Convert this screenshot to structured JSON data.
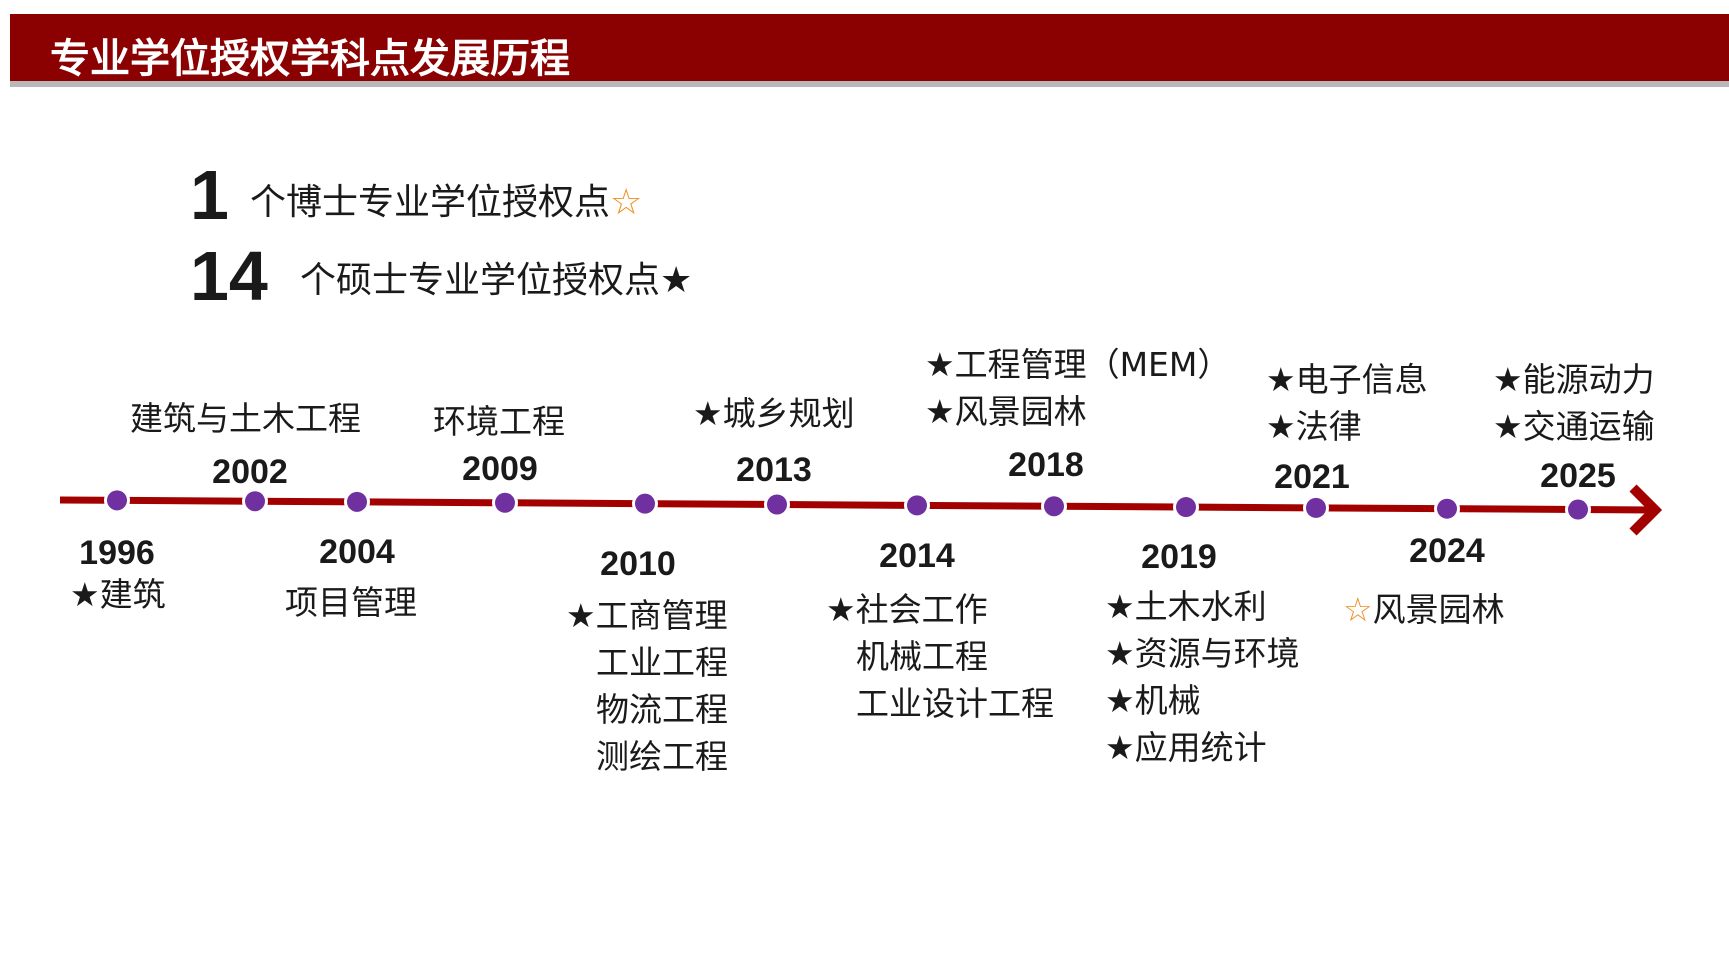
{
  "header": {
    "title": "专业学位授权学科点发展历程"
  },
  "summary": [
    {
      "number": "1",
      "text": "个博士专业学位授权点",
      "star": "☆"
    },
    {
      "number": "14",
      "text": "个硕士专业学位授权点",
      "star": "★"
    }
  ],
  "timeline": {
    "colors": {
      "line": "#a30000",
      "dot": "#7030a0",
      "orange_star": "#f08c1e"
    },
    "events": [
      {
        "year": "1996",
        "items": [
          "★建筑"
        ]
      },
      {
        "year": "2002",
        "items": [
          "建筑与土木工程"
        ]
      },
      {
        "year": "2004",
        "items": [
          "项目管理"
        ]
      },
      {
        "year": "2009",
        "items": [
          "环境工程"
        ]
      },
      {
        "year": "2010",
        "items": [
          "★工商管理",
          "工业工程",
          "物流工程",
          "测绘工程"
        ]
      },
      {
        "year": "2013",
        "items": [
          "★城乡规划"
        ]
      },
      {
        "year": "2014",
        "items": [
          "★社会工作",
          "机械工程",
          "工业设计工程"
        ]
      },
      {
        "year": "2018",
        "items": [
          "★工程管理（MEM）",
          "★风景园林"
        ]
      },
      {
        "year": "2019",
        "items": [
          "★土木水利",
          "★资源与环境",
          "★机械",
          "★应用统计"
        ]
      },
      {
        "year": "2021",
        "items": [
          "★电子信息",
          "★法律"
        ]
      },
      {
        "year": "2024",
        "star": "☆",
        "items": [
          "风景园林"
        ]
      },
      {
        "year": "2025",
        "items": [
          "★能源动力",
          "★交通运输"
        ]
      }
    ]
  }
}
